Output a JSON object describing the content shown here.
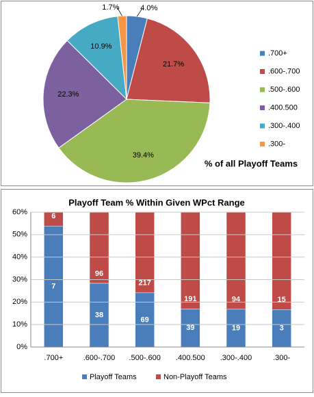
{
  "chart_data": [
    {
      "type": "pie",
      "annotation": "% of all Playoff Teams",
      "categories": [
        ".700+",
        ".600-.700",
        ".500-.600",
        ".400.500",
        ".300-.400",
        ".300-"
      ],
      "values": [
        4.0,
        21.7,
        39.4,
        22.3,
        10.9,
        1.7
      ],
      "value_labels": [
        "4.0%",
        "21.7%",
        "39.4%",
        "22.3%",
        "10.9%",
        "1.7%"
      ],
      "colors": [
        "#4a7ebb",
        "#be4b48",
        "#98b954",
        "#7d60a0",
        "#46aac5",
        "#f79646"
      ],
      "legend": "right"
    },
    {
      "type": "stacked_percent_bar",
      "title": "Playoff Team % Within Given WPct Range",
      "categories": [
        ".700+",
        ".600-.700",
        ".500-.600",
        ".400.500",
        ".300-.400",
        ".300-"
      ],
      "series": [
        {
          "name": "Playoff Teams",
          "color": "#4a7ebb",
          "values": [
            7,
            38,
            69,
            39,
            19,
            3
          ]
        },
        {
          "name": "Non-Playoff Teams",
          "color": "#be4b48",
          "values": [
            6,
            96,
            217,
            191,
            94,
            15
          ]
        }
      ],
      "ylim": [
        0,
        60
      ],
      "yticks": [
        {
          "value": 0,
          "label": "0%"
        },
        {
          "value": 10,
          "label": "10%"
        },
        {
          "value": 20,
          "label": "20%"
        },
        {
          "value": 30,
          "label": "30%"
        },
        {
          "value": 40,
          "label": "40%"
        },
        {
          "value": 50,
          "label": "50%"
        },
        {
          "value": 60,
          "label": "60%"
        }
      ],
      "grid": true,
      "legend": "bottom"
    }
  ]
}
